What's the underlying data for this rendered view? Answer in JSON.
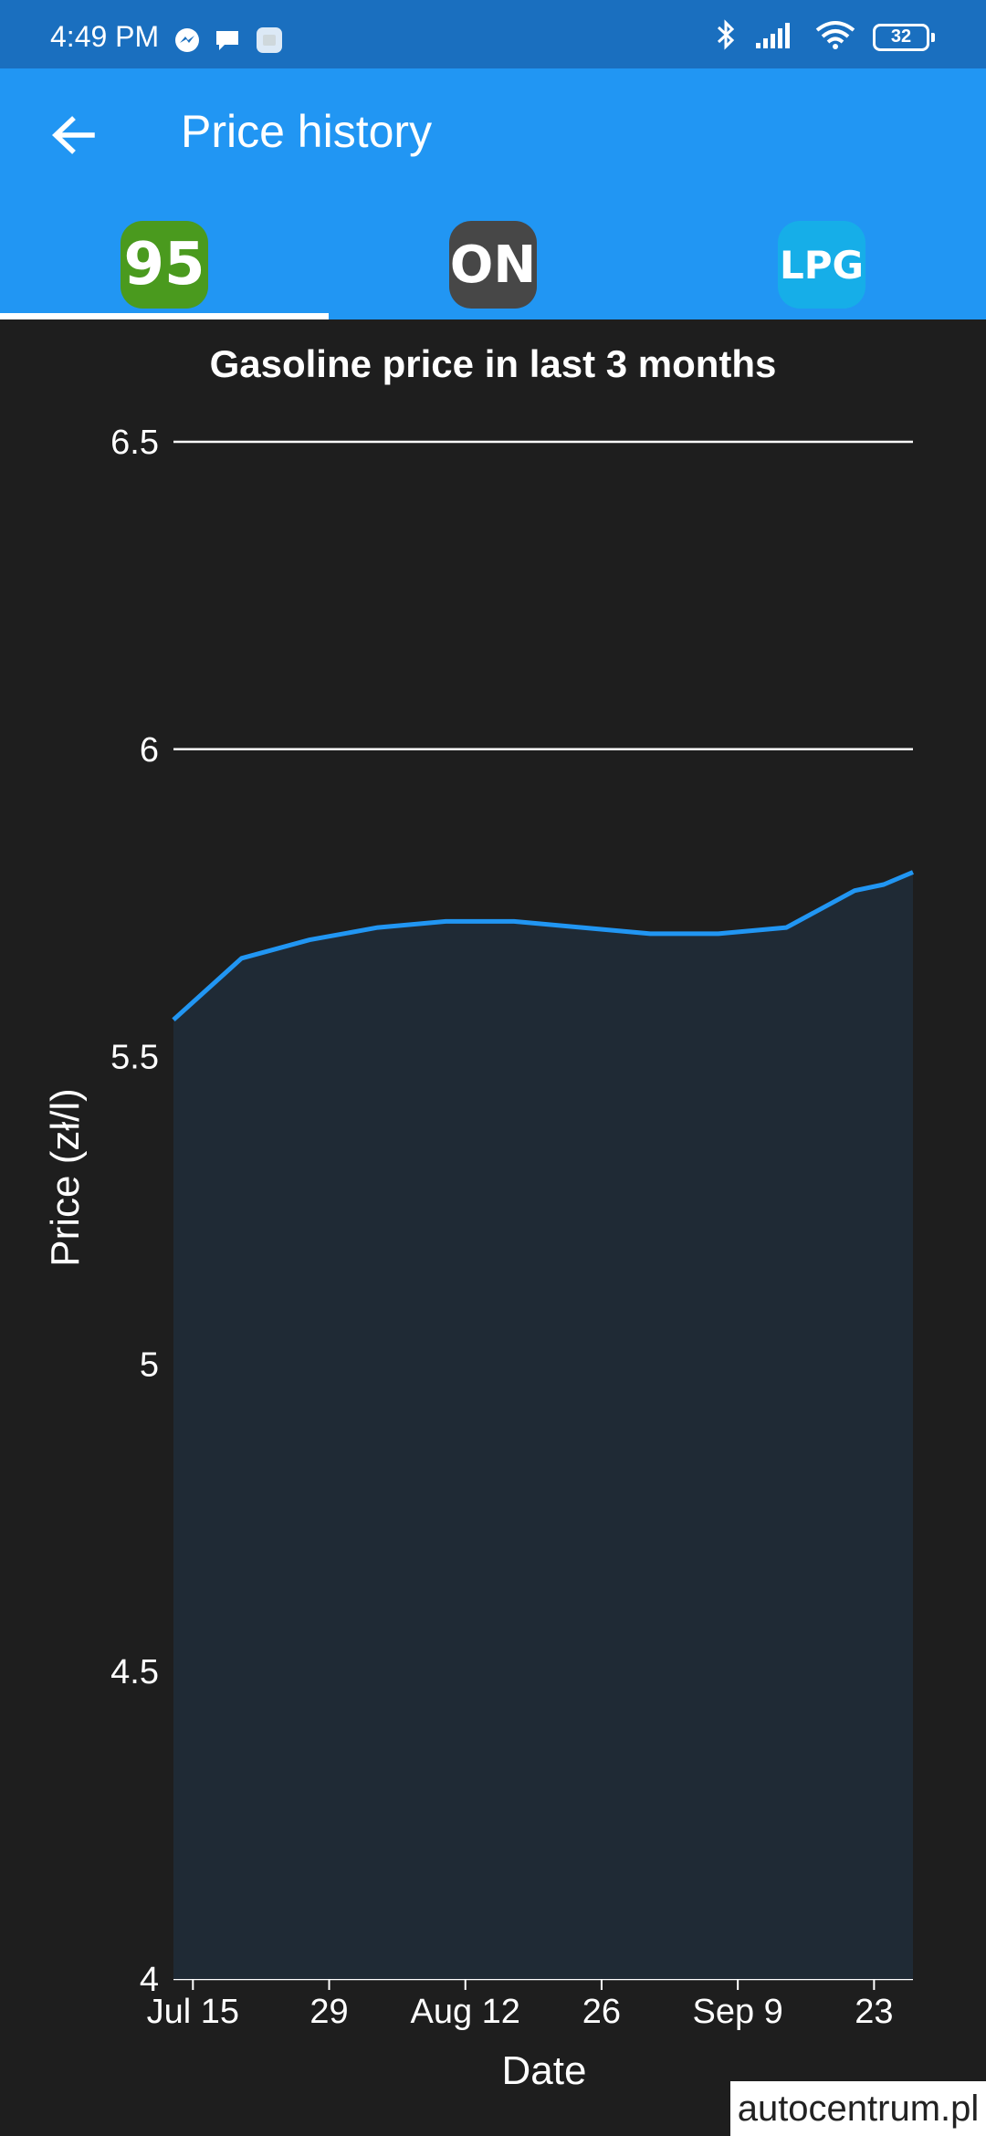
{
  "status_bar": {
    "time": "4:49 PM",
    "battery": "32",
    "icons_left": [
      "messenger-icon",
      "chat-icon",
      "app-icon"
    ],
    "icons_right": [
      "bluetooth-icon",
      "signal-icon",
      "wifi-icon",
      "battery-icon"
    ]
  },
  "app_bar": {
    "title": "Price history",
    "back_icon": "arrow-left-icon"
  },
  "tabs": [
    {
      "label": "95",
      "color": "#4a9a1e",
      "selected": true
    },
    {
      "label": "ON",
      "color": "#474747",
      "selected": false
    },
    {
      "label": "LPG",
      "color": "#16aee8",
      "selected": false
    }
  ],
  "colors": {
    "status_bar": "#1a6fbf",
    "app_bar": "#2196f3",
    "background": "#1e1e1e",
    "line": "#2196f3",
    "fill": "#1f2a35"
  },
  "watermark": "autocentrum.pl",
  "chart_data": {
    "type": "area",
    "title": "Gasoline price in last 3 months",
    "xlabel": "Date",
    "ylabel": "Price (zł/l)",
    "ylim": [
      4,
      6.5
    ],
    "yticks": [
      "4",
      "4.5",
      "5",
      "5.5",
      "6",
      "6.5"
    ],
    "xticks": [
      "Jul 15",
      "29",
      "Aug 12",
      "26",
      "Sep 9",
      "23"
    ],
    "xtick_dates": [
      "2024-07-15",
      "2024-07-29",
      "2024-08-12",
      "2024-08-26",
      "2024-09-09",
      "2024-09-23"
    ],
    "xlim": [
      "2024-07-13",
      "2024-09-27"
    ],
    "grid": true,
    "series": [
      {
        "x": [
          "2024-07-13",
          "2024-07-20",
          "2024-07-27",
          "2024-08-03",
          "2024-08-10",
          "2024-08-17",
          "2024-08-24",
          "2024-08-31",
          "2024-09-07",
          "2024-09-14",
          "2024-09-21",
          "2024-09-24",
          "2024-09-27"
        ],
        "y": [
          5.56,
          5.66,
          5.69,
          5.71,
          5.72,
          5.72,
          5.71,
          5.7,
          5.7,
          5.71,
          5.77,
          5.78,
          5.8
        ]
      }
    ]
  }
}
